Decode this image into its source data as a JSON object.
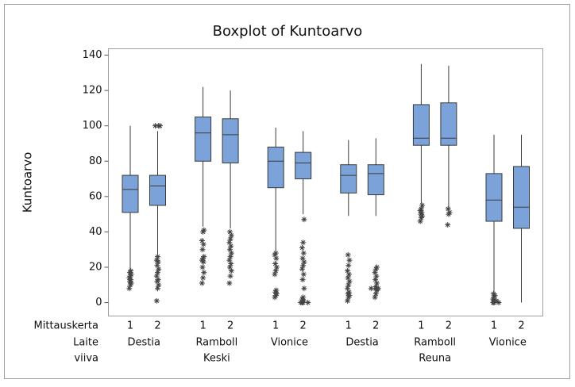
{
  "chart_data": {
    "type": "box",
    "title": "Boxplot of Kuntoarvo",
    "y_label": "Kuntoarvo",
    "ylim": [
      -7.6,
      143.6
    ],
    "yticks": [
      0,
      20,
      40,
      60,
      80,
      100,
      120,
      140
    ],
    "color": "#7ba3d9",
    "outline_color": "#3a3a3a",
    "factors": [
      {
        "name": "Mittauskerta",
        "labels": [
          "1",
          "2",
          "1",
          "2",
          "1",
          "2",
          "1",
          "2",
          "1",
          "2",
          "1",
          "2"
        ]
      },
      {
        "name": "Laite",
        "labels": [
          "Destia",
          "Ramboll",
          "Vionice",
          "Destia",
          "Ramboll",
          "Vionice"
        ]
      },
      {
        "name": "viiva",
        "labels": [
          "Keski",
          "Reuna"
        ]
      }
    ],
    "boxes": [
      {
        "whisker_low": 19,
        "q1": 51,
        "median": 64,
        "q3": 72,
        "whisker_high": 100,
        "outliers": [
          8,
          10,
          11,
          12,
          13,
          14,
          15,
          16,
          17,
          18
        ]
      },
      {
        "whisker_low": 27,
        "q1": 55,
        "median": 66,
        "q3": 72,
        "whisker_high": 97,
        "outliers": [
          1,
          8,
          10,
          12,
          13,
          15,
          17,
          19,
          21,
          23,
          24,
          26,
          100,
          100,
          100
        ]
      },
      {
        "whisker_low": 43,
        "q1": 80,
        "median": 96,
        "q3": 105,
        "whisker_high": 122,
        "outliers": [
          11,
          14,
          17,
          20,
          23,
          24,
          25,
          26,
          30,
          33,
          35,
          40,
          41
        ]
      },
      {
        "whisker_low": 42,
        "q1": 79,
        "median": 95,
        "q3": 104,
        "whisker_high": 120,
        "outliers": [
          11,
          15,
          18,
          20,
          22,
          24,
          26,
          28,
          30,
          32,
          34,
          36,
          38,
          40
        ]
      },
      {
        "whisker_low": 29,
        "q1": 65,
        "median": 80,
        "q3": 88,
        "whisker_high": 99,
        "outliers": [
          3,
          4,
          5,
          6,
          7,
          16,
          18,
          20,
          22,
          25,
          27,
          28
        ]
      },
      {
        "whisker_low": 50,
        "q1": 70,
        "median": 79,
        "q3": 85,
        "whisker_high": 97,
        "outliers": [
          0,
          0,
          0,
          0,
          1,
          2,
          3,
          8,
          13,
          16,
          19,
          21,
          23,
          25,
          28,
          31,
          34,
          47
        ]
      },
      {
        "whisker_low": 49,
        "q1": 62,
        "median": 72,
        "q3": 78,
        "whisker_high": 92,
        "outliers": [
          1,
          3,
          4,
          5,
          6,
          8,
          10,
          12,
          14,
          16,
          18,
          21,
          24,
          27
        ]
      },
      {
        "whisker_low": 49,
        "q1": 61,
        "median": 73,
        "q3": 78,
        "whisker_high": 93,
        "outliers": [
          3,
          5,
          7,
          8,
          8,
          8,
          9,
          11,
          13,
          15,
          17,
          19,
          20
        ]
      },
      {
        "whisker_low": 56,
        "q1": 89,
        "median": 93,
        "q3": 112,
        "whisker_high": 135,
        "outliers": [
          46,
          48,
          49,
          50,
          51,
          52,
          53,
          55
        ]
      },
      {
        "whisker_low": 54,
        "q1": 89,
        "median": 93,
        "q3": 113,
        "whisker_high": 134,
        "outliers": [
          44,
          50,
          51,
          53
        ]
      },
      {
        "whisker_low": 6,
        "q1": 46,
        "median": 58,
        "q3": 73,
        "whisker_high": 95,
        "outliers": [
          0,
          0,
          0,
          1,
          1,
          2,
          3,
          4,
          5
        ]
      },
      {
        "whisker_low": 0,
        "q1": 42,
        "median": 54,
        "q3": 77,
        "whisker_high": 95,
        "outliers": []
      }
    ]
  }
}
